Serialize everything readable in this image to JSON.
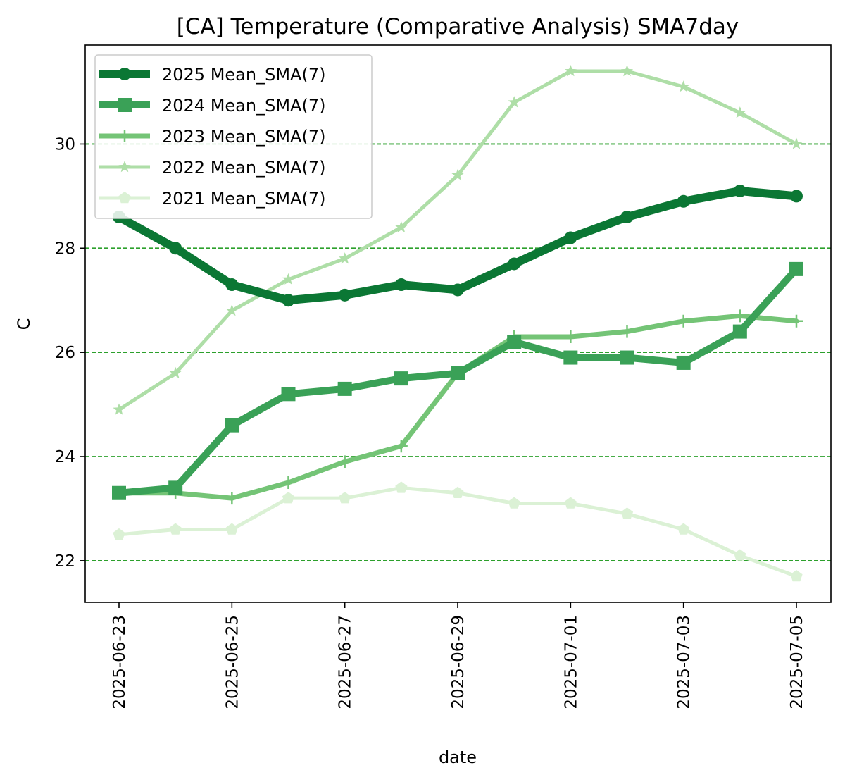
{
  "chart_data": {
    "type": "line",
    "title": "[CA] Temperature (Comparative Analysis) SMA7day",
    "xlabel": "date",
    "ylabel": "C",
    "x": [
      "2025-06-23",
      "2025-06-24",
      "2025-06-25",
      "2025-06-26",
      "2025-06-27",
      "2025-06-28",
      "2025-06-29",
      "2025-06-30",
      "2025-07-01",
      "2025-07-02",
      "2025-07-03",
      "2025-07-04",
      "2025-07-05"
    ],
    "x_tick_labels": [
      "2025-06-23",
      "2025-06-25",
      "2025-06-27",
      "2025-06-29",
      "2025-07-01",
      "2025-07-03",
      "2025-07-05"
    ],
    "y_ticks": [
      22,
      24,
      26,
      28,
      30
    ],
    "ylim": [
      21.2,
      31.9
    ],
    "grid": "horizontal dashed",
    "grid_color": "#2ca02c",
    "legend_position": "upper left",
    "series": [
      {
        "name": "2025 Mean_SMA(7)",
        "color": "#0b7734",
        "marker": "circle",
        "values": [
          28.6,
          28.0,
          27.3,
          27.0,
          27.1,
          27.3,
          27.2,
          27.7,
          28.2,
          28.6,
          28.9,
          29.1,
          29.0
        ]
      },
      {
        "name": "2024 Mean_SMA(7)",
        "color": "#3aa157",
        "marker": "square",
        "values": [
          23.3,
          23.4,
          24.6,
          25.2,
          25.3,
          25.5,
          25.6,
          26.2,
          25.9,
          25.9,
          25.8,
          26.4,
          27.6
        ]
      },
      {
        "name": "2023 Mean_SMA(7)",
        "color": "#74c476",
        "marker": "plus",
        "values": [
          23.3,
          23.3,
          23.2,
          23.5,
          23.9,
          24.2,
          25.6,
          26.3,
          26.3,
          26.4,
          26.6,
          26.7,
          26.6
        ]
      },
      {
        "name": "2022 Mean_SMA(7)",
        "color": "#aedea7",
        "marker": "star",
        "values": [
          24.9,
          25.6,
          26.8,
          27.4,
          27.8,
          28.4,
          29.4,
          30.8,
          31.4,
          31.4,
          31.1,
          30.6,
          30.0
        ]
      },
      {
        "name": "2021 Mean_SMA(7)",
        "color": "#dbf1d5",
        "marker": "pentagon",
        "values": [
          22.5,
          22.6,
          22.6,
          23.2,
          23.2,
          23.4,
          23.3,
          23.1,
          23.1,
          22.9,
          22.6,
          22.1,
          21.7
        ]
      }
    ]
  }
}
